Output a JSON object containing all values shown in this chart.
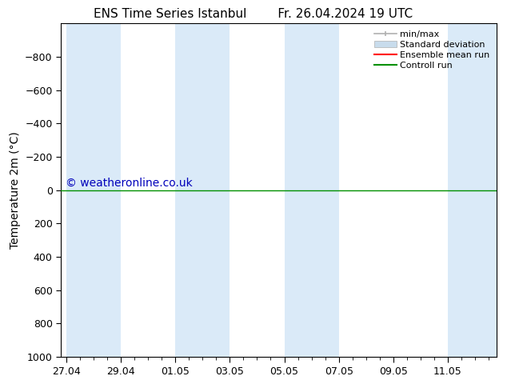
{
  "title": "ENS Time Series Istanbul",
  "subtitle": "Fr. 26.04.2024 19 UTC",
  "ylabel": "Temperature 2m (°C)",
  "watermark": "© weatheronline.co.uk",
  "ylim_bottom": -1000,
  "ylim_top": 1000,
  "yticks": [
    -800,
    -600,
    -400,
    -200,
    0,
    200,
    400,
    600,
    800,
    1000
  ],
  "xtick_labels": [
    "27.04",
    "29.04",
    "01.05",
    "03.05",
    "05.05",
    "07.05",
    "09.05",
    "11.05"
  ],
  "xtick_positions": [
    0,
    2,
    4,
    6,
    8,
    10,
    12,
    14
  ],
  "x_min": -0.2,
  "x_max": 15.8,
  "shaded_bands": [
    [
      0,
      2
    ],
    [
      4,
      6
    ],
    [
      8,
      10
    ],
    [
      14,
      15.8
    ]
  ],
  "shaded_color": "#daeaf8",
  "line_y": 0,
  "ensemble_mean_color": "#ff0000",
  "control_run_color": "#009000",
  "minmax_color": "#b0b0b0",
  "stddev_color": "#c8dcec",
  "background_color": "#ffffff",
  "legend_labels": [
    "min/max",
    "Standard deviation",
    "Ensemble mean run",
    "Controll run"
  ],
  "title_fontsize": 11,
  "axis_fontsize": 10,
  "tick_fontsize": 9,
  "watermark_color": "#0000bb",
  "watermark_fontsize": 10
}
